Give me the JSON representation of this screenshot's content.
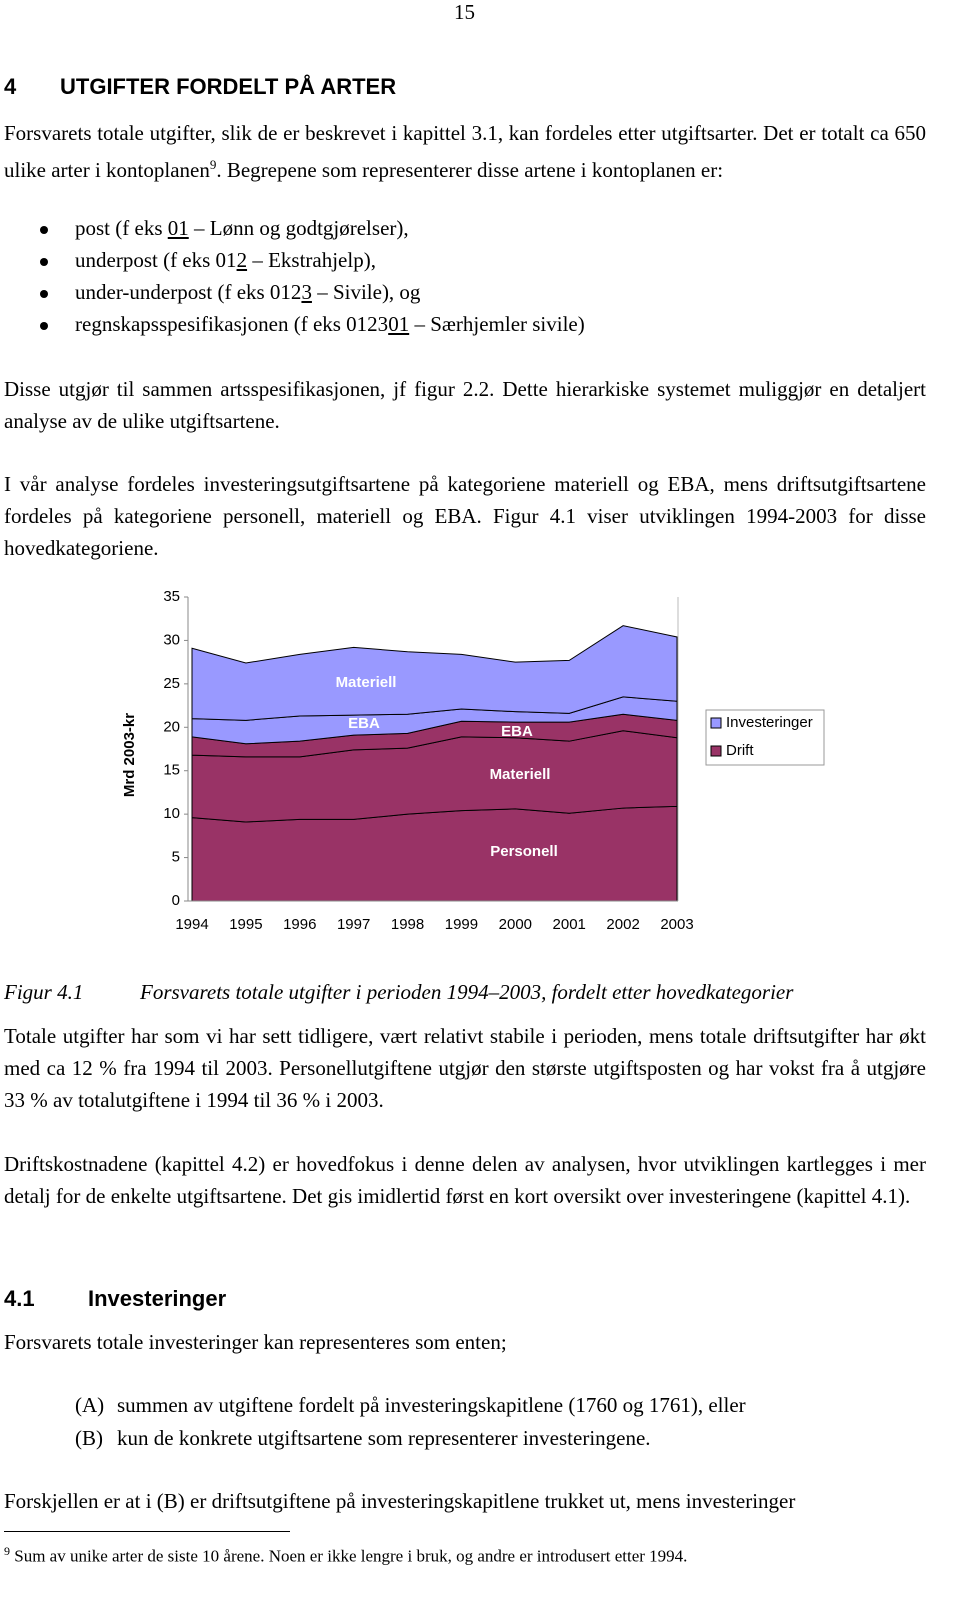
{
  "page_number": "15",
  "heading": {
    "number": "4",
    "title": "UTGIFTER FORDELT PÅ ARTER"
  },
  "intro": {
    "text_before": "Forsvarets totale utgifter, slik de er beskrevet i kapittel 3.1, kan fordeles etter utgiftsarter. Det er totalt ca 650 ulike arter i kontoplanen",
    "footnote_ref": "9",
    "text_after": ". Begrepene som representerer disse artene i kontoplanen er:"
  },
  "bullets": [
    {
      "before": "post (f eks ",
      "underlined": "01",
      "after": " – Lønn og godtgjørelser),"
    },
    {
      "before": "underpost (f eks 01",
      "underlined": "2",
      "after": " – Ekstrahjelp),"
    },
    {
      "before": "under-underpost (f eks 012",
      "underlined": "3",
      "after": " – Sivile), og"
    },
    {
      "before": "regnskapsspesifikasjonen (f eks 0123",
      "underlined": "01",
      "after": " – Særhjemler sivile)"
    }
  ],
  "paragraphs_1": [
    "Disse utgjør til sammen artsspesifikasjonen, jf figur 2.2. Dette hierarkiske systemet muliggjør en detaljert analyse av de ulike utgiftsartene.",
    "I vår analyse fordeles investeringsutgiftsartene på kategoriene materiell og EBA, mens driftsutgiftsartene fordeles på kategoriene personell, materiell og EBA. Figur 4.1 viser utviklingen 1994-2003 for disse hovedkategoriene."
  ],
  "chart_data": {
    "type": "stacked_area",
    "y_label": "Mrd 2003-kr",
    "categories": [
      "1994",
      "1995",
      "1996",
      "1997",
      "1998",
      "1999",
      "2000",
      "2001",
      "2002",
      "2003"
    ],
    "series": [
      {
        "name": "Personell",
        "color": "#993366",
        "values": [
          9.6,
          9.1,
          9.4,
          9.4,
          10.0,
          10.4,
          10.6,
          10.1,
          10.7,
          10.9
        ]
      },
      {
        "name": "Materiell",
        "color": "#993366",
        "values": [
          7.2,
          7.5,
          7.2,
          8.0,
          7.6,
          8.5,
          8.2,
          8.3,
          8.9,
          7.9
        ]
      },
      {
        "name": "EBA",
        "color": "#993366",
        "values": [
          2.1,
          1.5,
          1.8,
          1.7,
          1.7,
          1.8,
          1.8,
          2.2,
          1.9,
          2.0
        ]
      },
      {
        "name": "EBA",
        "color": "#9999ff",
        "values": [
          2.1,
          2.7,
          2.9,
          2.3,
          2.2,
          1.4,
          1.2,
          1.0,
          2.0,
          2.2
        ]
      },
      {
        "name": "Materiell",
        "color": "#9999ff",
        "values": [
          8.1,
          6.6,
          7.1,
          7.8,
          7.2,
          6.3,
          5.7,
          6.1,
          8.2,
          7.4
        ]
      }
    ],
    "legend": [
      {
        "name": "Investeringer",
        "color": "#9999ff"
      },
      {
        "name": "Drift",
        "color": "#993366"
      }
    ],
    "ylim": [
      0,
      35
    ],
    "yticks": [
      0,
      5,
      10,
      15,
      20,
      25,
      30,
      35
    ],
    "grid": false
  },
  "figure_caption": {
    "label": "Figur 4.1",
    "text": "Forsvarets totale utgifter i perioden 1994–2003, fordelt etter hovedkategorier"
  },
  "paragraphs_2": [
    "Totale utgifter har som vi har sett tidligere, vært relativt stabile i perioden, mens totale driftsutgifter har økt med ca 12 % fra 1994 til 2003. Personellutgiftene utgjør den største utgiftsposten og har vokst fra å utgjøre 33 % av totalutgiftene i 1994 til 36 % i 2003.",
    "Driftskostnadene (kapittel 4.2) er hovedfokus i denne delen av analysen, hvor utviklingen kartlegges i mer detalj for de enkelte utgiftsartene. Det gis imidlertid først en kort oversikt over investeringene (kapittel 4.1)."
  ],
  "section": {
    "number": "4.1",
    "title": "Investeringer"
  },
  "section_intro": "Forsvarets totale investeringer kan representeres som enten;",
  "list": [
    {
      "marker": "(A)",
      "text": "summen av utgiftene fordelt på investeringskapitlene (1760 og 1761), eller"
    },
    {
      "marker": "(B)",
      "text": "kun de konkrete utgiftsartene som representerer investeringene."
    }
  ],
  "last_paragraph": "Forskjellen er at i (B) er driftsutgiftene på investeringskapitlene trukket ut, mens investeringer",
  "footnote": {
    "number": "9",
    "text": "Sum av unike arter de siste 10 årene. Noen er ikke lengre i bruk, og andre er introdusert etter 1994."
  }
}
